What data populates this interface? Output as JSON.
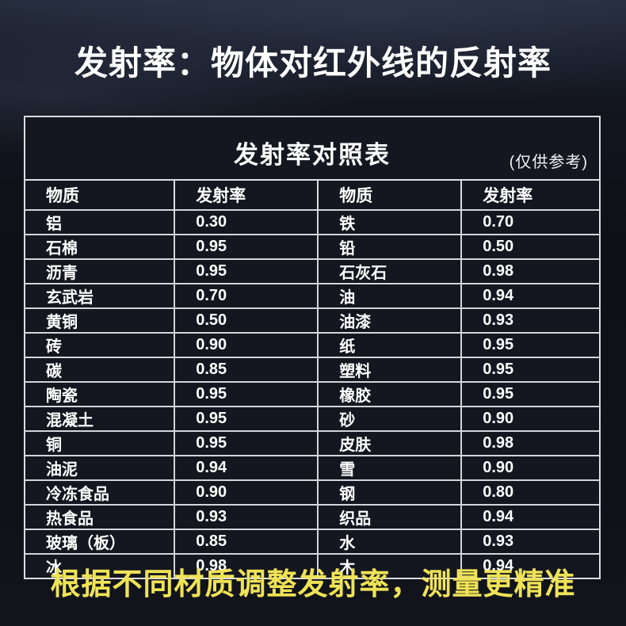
{
  "page": {
    "title": "发射率：物体对红外线的反射率",
    "footer": "根据不同材质调整发射率，测量更精准"
  },
  "table": {
    "title": "发射率对照表",
    "note": "(仅供参考)",
    "headers": [
      "物质",
      "发射率",
      "物质",
      "发射率"
    ],
    "rows": [
      [
        "铝",
        "0.30",
        "铁",
        "0.70"
      ],
      [
        "石棉",
        "0.95",
        "铅",
        "0.50"
      ],
      [
        "沥青",
        "0.95",
        "石灰石",
        "0.98"
      ],
      [
        "玄武岩",
        "0.70",
        "油",
        "0.94"
      ],
      [
        "黄铜",
        "0.50",
        "油漆",
        "0.93"
      ],
      [
        "砖",
        "0.90",
        "纸",
        "0.95"
      ],
      [
        "碳",
        "0.85",
        "塑料",
        "0.95"
      ],
      [
        "陶瓷",
        "0.95",
        "橡胶",
        "0.95"
      ],
      [
        "混凝土",
        "0.95",
        "砂",
        "0.90"
      ],
      [
        "铜",
        "0.95",
        "皮肤",
        "0.98"
      ],
      [
        "油泥",
        "0.94",
        "雪",
        "0.90"
      ],
      [
        "冷冻食品",
        "0.90",
        "钢",
        "0.80"
      ],
      [
        "热食品",
        "0.93",
        "织品",
        "0.94"
      ],
      [
        "玻璃（板）",
        "0.85",
        "水",
        "0.93"
      ],
      [
        "冰",
        "0.98",
        "木",
        "0.94"
      ]
    ]
  },
  "colors": {
    "background_dark": "#0e1017",
    "table_background": "#14171f",
    "border_light": "#dcdde2",
    "text_white": "#ffffff",
    "accent_yellow": "#efe356"
  },
  "chart_data": {
    "type": "table",
    "title": "发射率对照表",
    "subtitle": "(仅供参考)",
    "columns": [
      "物质",
      "发射率"
    ],
    "entries": [
      {
        "material": "铝",
        "emissivity": 0.3
      },
      {
        "material": "石棉",
        "emissivity": 0.95
      },
      {
        "material": "沥青",
        "emissivity": 0.95
      },
      {
        "material": "玄武岩",
        "emissivity": 0.7
      },
      {
        "material": "黄铜",
        "emissivity": 0.5
      },
      {
        "material": "砖",
        "emissivity": 0.9
      },
      {
        "material": "碳",
        "emissivity": 0.85
      },
      {
        "material": "陶瓷",
        "emissivity": 0.95
      },
      {
        "material": "混凝土",
        "emissivity": 0.95
      },
      {
        "material": "铜",
        "emissivity": 0.95
      },
      {
        "material": "油泥",
        "emissivity": 0.94
      },
      {
        "material": "冷冻食品",
        "emissivity": 0.9
      },
      {
        "material": "热食品",
        "emissivity": 0.93
      },
      {
        "material": "玻璃（板）",
        "emissivity": 0.85
      },
      {
        "material": "冰",
        "emissivity": 0.98
      },
      {
        "material": "铁",
        "emissivity": 0.7
      },
      {
        "material": "铅",
        "emissivity": 0.5
      },
      {
        "material": "石灰石",
        "emissivity": 0.98
      },
      {
        "material": "油",
        "emissivity": 0.94
      },
      {
        "material": "油漆",
        "emissivity": 0.93
      },
      {
        "material": "纸",
        "emissivity": 0.95
      },
      {
        "material": "塑料",
        "emissivity": 0.95
      },
      {
        "material": "橡胶",
        "emissivity": 0.95
      },
      {
        "material": "砂",
        "emissivity": 0.9
      },
      {
        "material": "皮肤",
        "emissivity": 0.98
      },
      {
        "material": "雪",
        "emissivity": 0.9
      },
      {
        "material": "钢",
        "emissivity": 0.8
      },
      {
        "material": "织品",
        "emissivity": 0.94
      },
      {
        "material": "水",
        "emissivity": 0.93
      },
      {
        "material": "木",
        "emissivity": 0.94
      }
    ]
  }
}
